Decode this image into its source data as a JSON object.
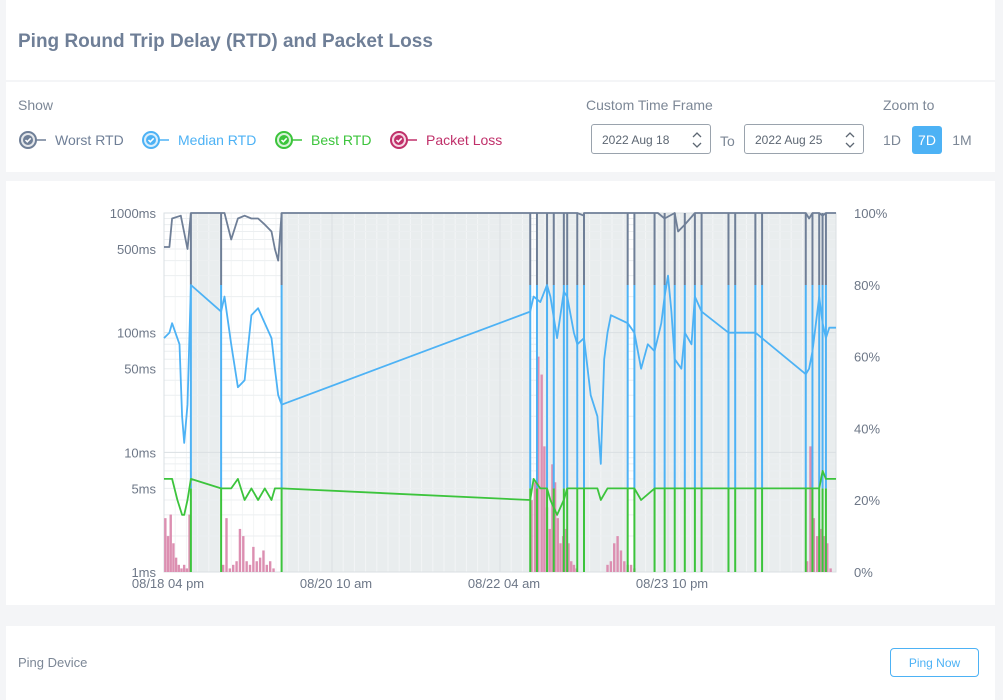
{
  "header": {
    "title": "Ping Round Trip Delay (RTD) and Packet Loss"
  },
  "controls": {
    "show_label": "Show",
    "legend": [
      {
        "label": "Worst RTD",
        "color": "#6f7f97"
      },
      {
        "label": "Median RTD",
        "color": "#4db2f5"
      },
      {
        "label": "Best RTD",
        "color": "#3cc43c"
      },
      {
        "label": "Packet Loss",
        "color": "#c0306a"
      }
    ],
    "custom_time_frame_label": "Custom Time Frame",
    "date_from": "2022 Aug 18",
    "to_label": "To",
    "date_to": "2022 Aug 25",
    "zoom_label": "Zoom to",
    "zoom_options": [
      "1D",
      "7D",
      "1M"
    ],
    "zoom_selected": "7D"
  },
  "chart_data": {
    "type": "line",
    "x_tick_labels": [
      "08/18 04 pm",
      "08/20 10 am",
      "08/22 04 am",
      "08/23 10 pm"
    ],
    "y_left_ticks": [
      "1000ms",
      "500ms",
      "100ms",
      "50ms",
      "10ms",
      "5ms",
      "1ms"
    ],
    "y_left_values": [
      1000,
      500,
      100,
      50,
      10,
      5,
      1
    ],
    "y_left_scale": "log",
    "y_right_ticks": [
      "100%",
      "80%",
      "60%",
      "40%",
      "20%",
      "0%"
    ],
    "y_right_values": [
      100,
      80,
      60,
      40,
      20,
      0
    ],
    "x_range": [
      0,
      100
    ],
    "grid": true,
    "offline_shading": [
      [
        4.0,
        8.5
      ],
      [
        17.5,
        54.5
      ],
      [
        55.5,
        69.0
      ],
      [
        70.0,
        100.0
      ]
    ],
    "offline_segments": [
      [
        4.0,
        8.5
      ],
      [
        17.5,
        54.5
      ],
      [
        55.5,
        57.0
      ],
      [
        58.0,
        59.5
      ],
      [
        60.0,
        61.5
      ],
      [
        62.5,
        69.0
      ],
      [
        70.0,
        73.0
      ],
      [
        74.5,
        76.0
      ],
      [
        77.5,
        79.0
      ],
      [
        80.0,
        84.0
      ],
      [
        85.0,
        88.0
      ],
      [
        89.0,
        95.5
      ],
      [
        96.5,
        97.5
      ],
      [
        98.0,
        98.5
      ]
    ],
    "series": [
      {
        "name": "Worst RTD",
        "color": "#6f7f97",
        "points": [
          [
            0,
            520
          ],
          [
            0.8,
            520
          ],
          [
            1.2,
            900
          ],
          [
            2.5,
            950
          ],
          [
            3.5,
            500
          ],
          [
            4,
            1000
          ],
          [
            8.5,
            1000
          ],
          [
            9,
            1000
          ],
          [
            10,
            600
          ],
          [
            11,
            900
          ],
          [
            12,
            950
          ],
          [
            13,
            900
          ],
          [
            14,
            900
          ],
          [
            15,
            800
          ],
          [
            16,
            700
          ],
          [
            16.5,
            500
          ],
          [
            17,
            400
          ],
          [
            17.5,
            1000
          ],
          [
            54.5,
            1000
          ],
          [
            55,
            1000
          ],
          [
            57,
            1000
          ],
          [
            57.5,
            1000
          ],
          [
            59.5,
            1000
          ],
          [
            61.5,
            1000
          ],
          [
            62.5,
            950
          ],
          [
            62.5,
            1000
          ],
          [
            73,
            1000
          ],
          [
            73.5,
            1000
          ],
          [
            74.5,
            900
          ],
          [
            76,
            1000
          ],
          [
            76.5,
            700
          ],
          [
            77.5,
            800
          ],
          [
            79,
            1000
          ],
          [
            84,
            1000
          ],
          [
            88,
            1000
          ],
          [
            95.5,
            1000
          ],
          [
            96,
            900
          ],
          [
            96.5,
            1000
          ],
          [
            97.5,
            1000
          ],
          [
            98,
            950
          ],
          [
            98.5,
            1000
          ],
          [
            100,
            1000
          ]
        ]
      },
      {
        "name": "Median RTD",
        "color": "#4db2f5",
        "points": [
          [
            0,
            90
          ],
          [
            0.8,
            100
          ],
          [
            1.2,
            120
          ],
          [
            2.3,
            80
          ],
          [
            2.7,
            20
          ],
          [
            3,
            12
          ],
          [
            3.5,
            25
          ],
          [
            4,
            250
          ],
          [
            8.5,
            150
          ],
          [
            9,
            200
          ],
          [
            10,
            80
          ],
          [
            11,
            35
          ],
          [
            12,
            40
          ],
          [
            13,
            140
          ],
          [
            14,
            160
          ],
          [
            15,
            120
          ],
          [
            16,
            90
          ],
          [
            16.5,
            50
          ],
          [
            17,
            30
          ],
          [
            17.5,
            25
          ],
          [
            54.5,
            150
          ],
          [
            55,
            200
          ],
          [
            56,
            180
          ],
          [
            57,
            250
          ],
          [
            57.5,
            200
          ],
          [
            58.5,
            90
          ],
          [
            59.5,
            220
          ],
          [
            60,
            200
          ],
          [
            61,
            100
          ],
          [
            61.5,
            80
          ],
          [
            62.5,
            90
          ],
          [
            63.5,
            30
          ],
          [
            64.5,
            20
          ],
          [
            65,
            8
          ],
          [
            65.5,
            60
          ],
          [
            66,
            100
          ],
          [
            66.5,
            140
          ],
          [
            69,
            120
          ],
          [
            70,
            100
          ],
          [
            71,
            50
          ],
          [
            72,
            80
          ],
          [
            73,
            70
          ],
          [
            74,
            120
          ],
          [
            74.5,
            200
          ],
          [
            75,
            300
          ],
          [
            75.5,
            150
          ],
          [
            76,
            60
          ],
          [
            77,
            50
          ],
          [
            77.5,
            100
          ],
          [
            78.5,
            80
          ],
          [
            79,
            200
          ],
          [
            80,
            150
          ],
          [
            84,
            100
          ],
          [
            88,
            100
          ],
          [
            95.5,
            45
          ],
          [
            96,
            50
          ],
          [
            96.5,
            70
          ],
          [
            97.5,
            200
          ],
          [
            98,
            120
          ],
          [
            98.5,
            90
          ],
          [
            99,
            110
          ],
          [
            100,
            110
          ]
        ]
      },
      {
        "name": "Best RTD",
        "color": "#3cc43c",
        "points": [
          [
            0,
            6
          ],
          [
            0.8,
            6
          ],
          [
            1.2,
            6
          ],
          [
            2,
            4
          ],
          [
            2.7,
            3
          ],
          [
            3,
            3
          ],
          [
            3.5,
            4
          ],
          [
            4,
            6
          ],
          [
            8.5,
            5
          ],
          [
            9,
            5
          ],
          [
            10,
            5
          ],
          [
            11,
            6
          ],
          [
            12,
            4
          ],
          [
            13,
            5
          ],
          [
            14,
            4
          ],
          [
            15,
            5
          ],
          [
            16,
            4
          ],
          [
            16.5,
            5
          ],
          [
            17,
            5
          ],
          [
            17.5,
            5
          ],
          [
            54.5,
            4
          ],
          [
            55,
            6
          ],
          [
            56,
            5
          ],
          [
            57,
            5
          ],
          [
            57.5,
            4
          ],
          [
            58.5,
            3
          ],
          [
            59.5,
            4
          ],
          [
            60,
            5
          ],
          [
            61,
            5
          ],
          [
            61.5,
            5
          ],
          [
            62.5,
            5
          ],
          [
            64.5,
            5
          ],
          [
            65,
            4
          ],
          [
            66,
            5
          ],
          [
            69,
            5
          ],
          [
            70,
            5
          ],
          [
            71,
            4
          ],
          [
            73,
            5
          ],
          [
            74,
            5
          ],
          [
            75,
            5
          ],
          [
            76,
            5
          ],
          [
            77,
            5
          ],
          [
            79,
            5
          ],
          [
            84,
            5
          ],
          [
            88,
            5
          ],
          [
            95.5,
            5
          ],
          [
            96,
            5
          ],
          [
            97.5,
            5
          ],
          [
            98,
            7
          ],
          [
            98.5,
            6
          ],
          [
            99,
            6
          ],
          [
            100,
            6
          ]
        ]
      },
      {
        "name": "Packet Loss",
        "color": "#c0306a",
        "bars": [
          [
            0.2,
            15
          ],
          [
            0.6,
            10
          ],
          [
            1.0,
            16
          ],
          [
            1.4,
            8
          ],
          [
            1.8,
            4
          ],
          [
            2.2,
            2
          ],
          [
            2.6,
            1
          ],
          [
            3.0,
            2
          ],
          [
            3.4,
            1
          ],
          [
            3.8,
            16
          ],
          [
            8.8,
            2
          ],
          [
            9.3,
            15
          ],
          [
            9.8,
            1
          ],
          [
            10.3,
            2
          ],
          [
            10.8,
            3
          ],
          [
            11.3,
            12
          ],
          [
            11.8,
            10
          ],
          [
            12.3,
            3
          ],
          [
            12.8,
            2
          ],
          [
            13.3,
            7
          ],
          [
            13.8,
            3
          ],
          [
            14.3,
            4
          ],
          [
            14.8,
            6
          ],
          [
            15.3,
            2
          ],
          [
            15.8,
            3
          ],
          [
            16.3,
            1
          ],
          [
            54.7,
            20
          ],
          [
            55.2,
            25
          ],
          [
            55.7,
            60
          ],
          [
            56.2,
            55
          ],
          [
            56.6,
            35
          ],
          [
            57.0,
            18
          ],
          [
            57.4,
            12
          ],
          [
            57.8,
            30
          ],
          [
            58.2,
            25
          ],
          [
            58.6,
            15
          ],
          [
            59.0,
            8
          ],
          [
            59.4,
            10
          ],
          [
            59.8,
            12
          ],
          [
            60.2,
            8
          ],
          [
            60.6,
            3
          ],
          [
            61.0,
            2
          ],
          [
            61.4,
            1
          ],
          [
            66.0,
            2
          ],
          [
            66.5,
            3
          ],
          [
            67.0,
            8
          ],
          [
            67.5,
            10
          ],
          [
            68.0,
            6
          ],
          [
            68.5,
            3
          ],
          [
            69.0,
            2
          ],
          [
            69.5,
            2
          ],
          [
            70.0,
            1
          ],
          [
            95.7,
            3
          ],
          [
            96.2,
            35
          ],
          [
            96.7,
            15
          ],
          [
            97.2,
            10
          ],
          [
            97.7,
            12
          ],
          [
            98.2,
            10
          ],
          [
            98.7,
            8
          ],
          [
            99.2,
            1
          ]
        ]
      }
    ]
  },
  "footer": {
    "ping_device_label": "Ping Device",
    "ping_now_label": "Ping Now"
  }
}
